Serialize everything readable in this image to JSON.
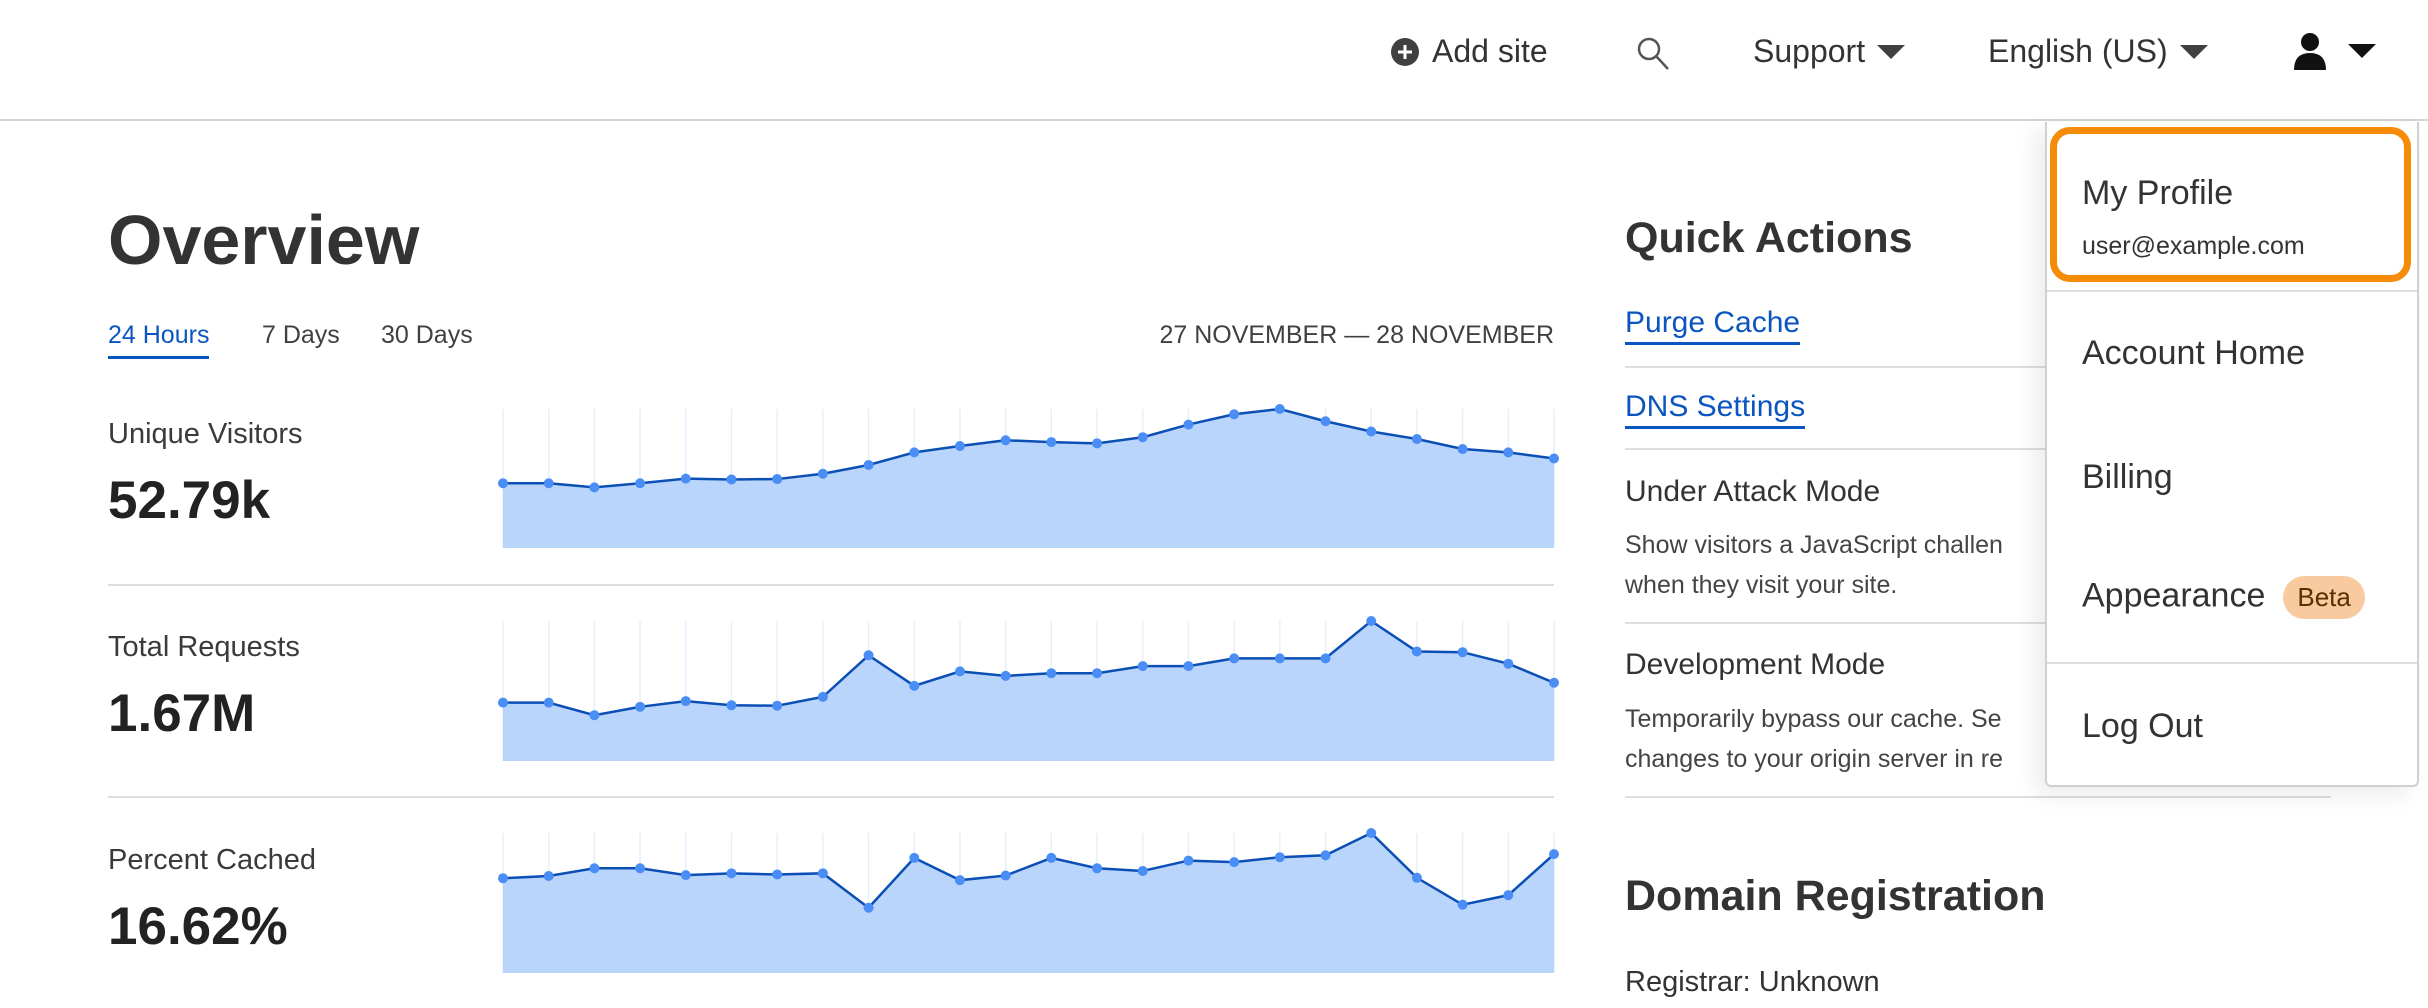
{
  "header": {
    "add_site": "Add site",
    "support": "Support",
    "language": "English (US)",
    "icons": {
      "add": "plus-circle-icon",
      "search": "search-icon",
      "user": "user-icon",
      "caret": "caret-down-icon"
    }
  },
  "overview": {
    "title": "Overview",
    "tabs": [
      {
        "label": "24 Hours",
        "active": true
      },
      {
        "label": "7 Days",
        "active": false
      },
      {
        "label": "30 Days",
        "active": false
      }
    ],
    "date_range": "27 NOVEMBER — 28 NOVEMBER",
    "metrics": [
      {
        "label": "Unique Visitors",
        "value": "52.79k"
      },
      {
        "label": "Total Requests",
        "value": "1.67M"
      },
      {
        "label": "Percent Cached",
        "value": "16.62%"
      }
    ]
  },
  "chart_data": [
    {
      "type": "area",
      "series": [
        {
          "values": [
            46.6,
            46.6,
            43.6,
            46.6,
            49.9,
            49.3,
            49.6,
            53.4,
            59.7,
            68.8,
            73.4,
            77.5,
            76.2,
            75.3,
            79.7,
            88.8,
            96.2,
            100,
            91.2,
            83.8,
            78.4,
            71.2,
            68.8,
            64.4
          ]
        }
      ],
      "ylim": [
        0,
        100
      ],
      "grid": "vertical",
      "colors": {
        "line": "#0b4fb5",
        "fill": "#b9d5fb",
        "points": "#4a8ef5"
      }
    },
    {
      "type": "area",
      "series": [
        {
          "values": [
            41.7,
            41.7,
            32.7,
            38.7,
            42.8,
            39.8,
            39.5,
            45.8,
            75.5,
            53.7,
            64.0,
            60.8,
            62.7,
            62.7,
            67.8,
            67.8,
            73.3,
            73.3,
            73.3,
            100,
            78.2,
            77.7,
            69.5,
            55.9
          ]
        }
      ],
      "ylim": [
        0,
        100
      ],
      "grid": "vertical",
      "colors": {
        "line": "#0b4fb5",
        "fill": "#b9d5fb",
        "points": "#4a8ef5"
      }
    },
    {
      "type": "area",
      "series": [
        {
          "values": [
            67.7,
            69.3,
            74.8,
            74.8,
            69.9,
            71.2,
            70.4,
            71.2,
            46.6,
            82.2,
            66.3,
            69.6,
            82.2,
            74.8,
            72.9,
            80.3,
            79.2,
            82.7,
            84.1,
            100,
            68.0,
            48.8,
            55.6,
            84.9
          ]
        }
      ],
      "ylim": [
        0,
        100
      ],
      "grid": "vertical",
      "colors": {
        "line": "#0b4fb5",
        "fill": "#b9d5fb",
        "points": "#4a8ef5"
      }
    }
  ],
  "quick_actions": {
    "title": "Quick Actions",
    "links": [
      "Purge Cache",
      "DNS Settings"
    ],
    "under_attack": {
      "title": "Under Attack Mode",
      "desc1": "Show visitors a JavaScript challen",
      "desc2": "when they visit your site."
    },
    "dev_mode": {
      "title": "Development Mode",
      "desc1": "Temporarily bypass our cache. Se",
      "desc2": "changes to your origin server in re"
    }
  },
  "domain": {
    "title": "Domain Registration",
    "registrar": "Registrar: Unknown"
  },
  "user_menu": {
    "profile": "My Profile",
    "email": "user@example.com",
    "account_home": "Account Home",
    "billing": "Billing",
    "appearance": "Appearance",
    "beta": "Beta",
    "logout": "Log Out",
    "highlight_color": "#f68b08"
  }
}
